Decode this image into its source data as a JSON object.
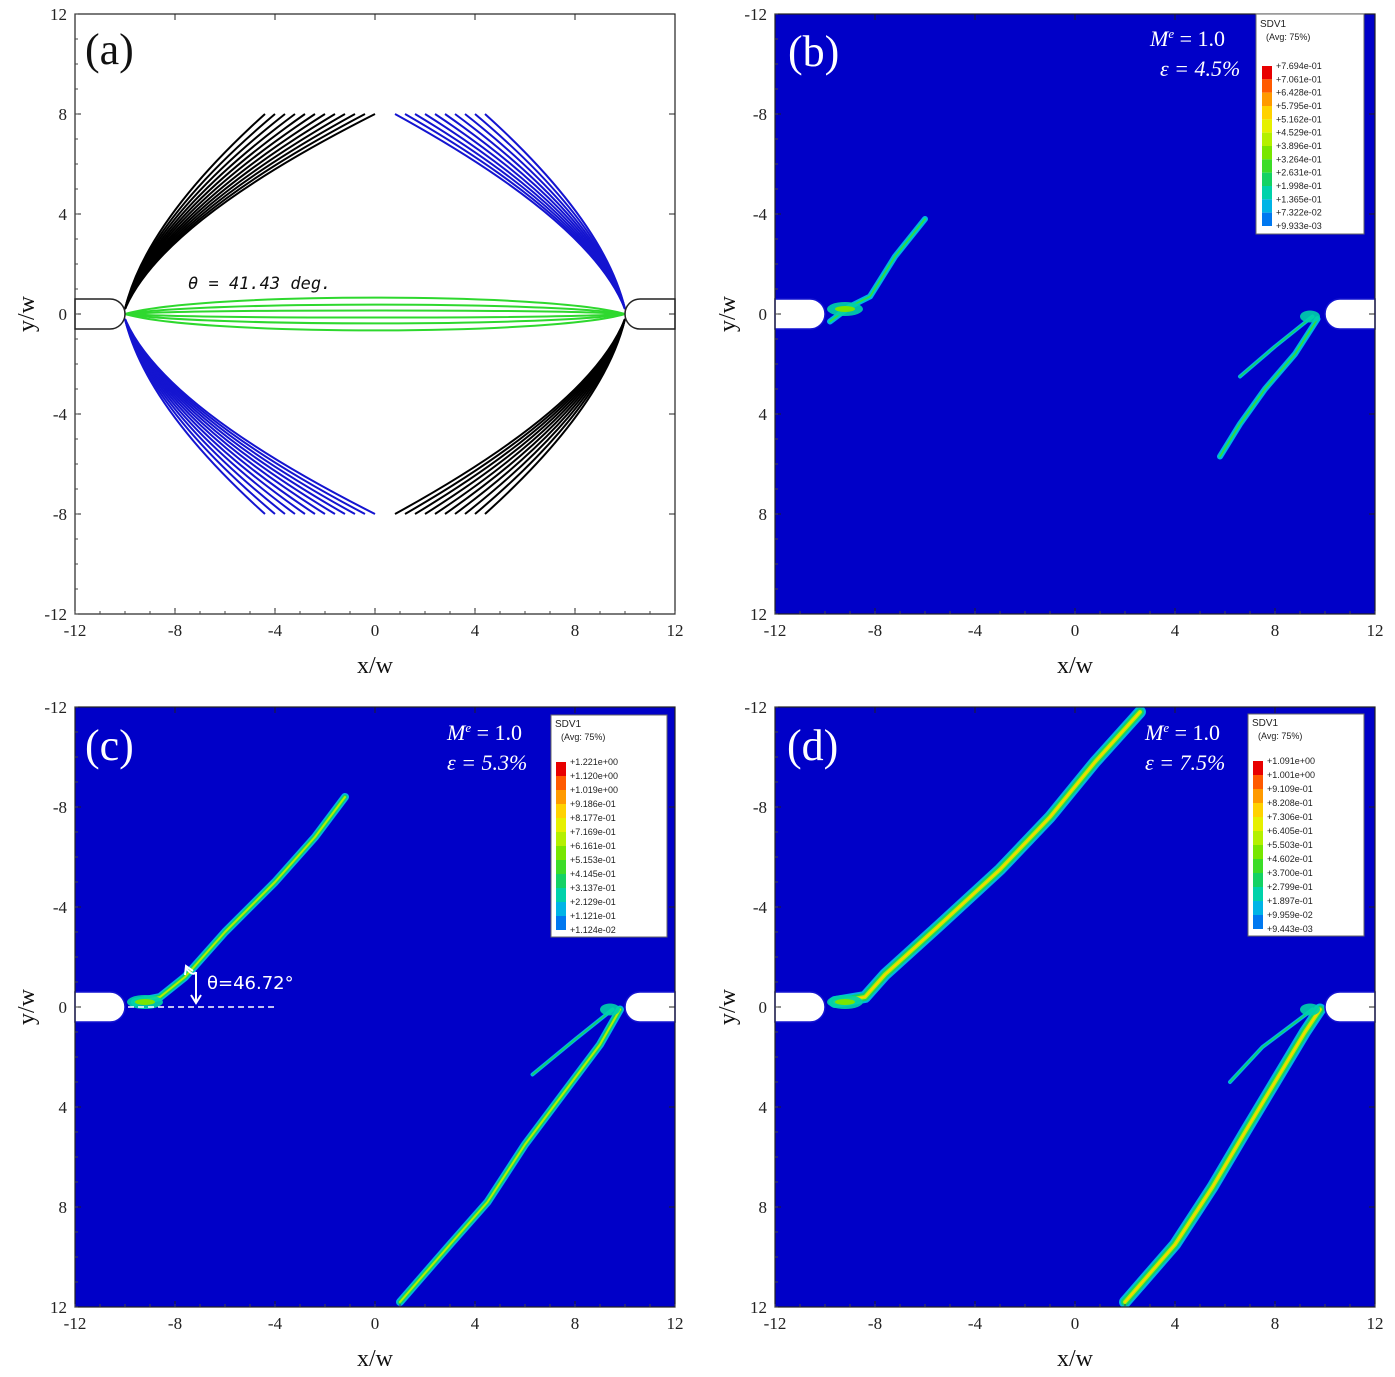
{
  "chart_data": [
    {
      "id": "a",
      "type": "line",
      "panel_label": "(a)",
      "xlabel": "x/w",
      "ylabel": "y/w",
      "xlim": [
        -12,
        12
      ],
      "ylim": [
        -12,
        12
      ],
      "x_ticks": [
        "-12",
        "-8",
        "-4",
        "0",
        "4",
        "8",
        "12"
      ],
      "y_ticks": [
        "12",
        "8",
        "4",
        "0",
        "-4",
        "-8",
        "-12"
      ],
      "y_axis": "up",
      "annotation": "θ = 41.43  deg.",
      "series_colors": {
        "black": "#000000",
        "blue": "#1414d0",
        "green": "#2ed82e"
      },
      "upper_left_black_end_x": [
        -4.4,
        -4.0,
        -3.6,
        -3.2,
        -2.8,
        -2.4,
        -2.0,
        -1.6,
        -1.2,
        -0.8,
        -0.4,
        0.0
      ],
      "upper_right_blue_end_x": [
        0.8,
        1.2,
        1.6,
        2.0,
        2.4,
        2.8,
        3.2,
        3.6,
        4.0,
        4.4
      ],
      "lower_left_blue_end_x": [
        -4.4,
        -4.0,
        -3.6,
        -3.2,
        -2.8,
        -2.4,
        -2.0,
        -1.6,
        -1.2,
        -0.8,
        -0.4,
        0.0
      ],
      "lower_right_black_end_x": [
        0.8,
        1.2,
        1.6,
        2.0,
        2.4,
        2.8,
        3.2,
        3.6,
        4.0,
        4.4
      ],
      "end_y": 8,
      "notch_tip_x": 10,
      "green_band_y": [
        0.7,
        0.4,
        0.15,
        -0.15,
        -0.4,
        -0.7
      ]
    },
    {
      "id": "b",
      "type": "heatmap",
      "panel_label": "(b)",
      "xlabel": "x/w",
      "ylabel": "y/w",
      "xlim": [
        -12,
        12
      ],
      "ylim": [
        -12,
        12
      ],
      "x_ticks": [
        "-12",
        "-8",
        "-4",
        "0",
        "4",
        "8",
        "12"
      ],
      "y_ticks": [
        "-12",
        "-8",
        "-4",
        "0",
        "4",
        "8",
        "12"
      ],
      "y_axis": "down",
      "M_label": "M",
      "M_sup": "e",
      "M_value": " = 1.0",
      "strain": "ε = 4.5%",
      "legend_title": "SDV1",
      "legend_sub": "(Avg: 75%)",
      "legend_values": [
        "+7.694e-01",
        "+7.061e-01",
        "+6.428e-01",
        "+5.795e-01",
        "+5.162e-01",
        "+4.529e-01",
        "+3.896e-01",
        "+3.264e-01",
        "+2.631e-01",
        "+1.998e-01",
        "+1.365e-01",
        "+7.322e-02",
        "+9.933e-03"
      ],
      "bands": [
        {
          "points": [
            [
              -9.8,
              0.3
            ],
            [
              -9.0,
              -0.3
            ],
            [
              -8.2,
              -0.7
            ],
            [
              -7.2,
              -2.3
            ],
            [
              -6.0,
              -3.8
            ]
          ]
        },
        {
          "points": [
            [
              9.7,
              0.2
            ],
            [
              8.8,
              1.6
            ],
            [
              7.6,
              3.0
            ],
            [
              6.6,
              4.4
            ],
            [
              5.8,
              5.7
            ]
          ]
        },
        {
          "points": [
            [
              9.5,
              0.1
            ],
            [
              8.0,
              1.3
            ],
            [
              6.6,
              2.5
            ]
          ]
        }
      ]
    },
    {
      "id": "c",
      "type": "heatmap",
      "panel_label": "(c)",
      "xlabel": "x/w",
      "ylabel": "y/w",
      "xlim": [
        -12,
        12
      ],
      "ylim": [
        -12,
        12
      ],
      "x_ticks": [
        "-12",
        "-8",
        "-4",
        "0",
        "4",
        "8",
        "12"
      ],
      "y_ticks": [
        "-12",
        "-8",
        "-4",
        "0",
        "4",
        "8",
        "12"
      ],
      "y_axis": "down",
      "M_label": "M",
      "M_sup": "e",
      "M_value": " = 1.0",
      "strain": "ε = 5.3%",
      "angle_label": "θ=46.72°",
      "legend_title": "SDV1",
      "legend_sub": "(Avg: 75%)",
      "legend_values": [
        "+1.221e+00",
        "+1.120e+00",
        "+1.019e+00",
        "+9.186e-01",
        "+8.177e-01",
        "+7.169e-01",
        "+6.161e-01",
        "+5.153e-01",
        "+4.145e-01",
        "+3.137e-01",
        "+2.129e-01",
        "+1.121e-01",
        "+1.124e-02"
      ],
      "bands": [
        {
          "points": [
            [
              -9.6,
              -0.2
            ],
            [
              -8.6,
              -0.4
            ],
            [
              -7.6,
              -1.2
            ],
            [
              -6.0,
              -3.0
            ],
            [
              -4.0,
              -5.0
            ],
            [
              -2.4,
              -6.8
            ],
            [
              -1.2,
              -8.4
            ]
          ]
        },
        {
          "points": [
            [
              9.8,
              0.1
            ],
            [
              9.0,
              1.5
            ],
            [
              7.5,
              3.5
            ],
            [
              6.0,
              5.5
            ],
            [
              4.5,
              7.8
            ],
            [
              3.0,
              9.5
            ],
            [
              1.0,
              11.8
            ]
          ]
        },
        {
          "points": [
            [
              9.5,
              0.1
            ],
            [
              8.0,
              1.3
            ],
            [
              6.3,
              2.7
            ]
          ]
        }
      ]
    },
    {
      "id": "d",
      "type": "heatmap",
      "panel_label": "(d)",
      "xlabel": "x/w",
      "ylabel": "y/w",
      "xlim": [
        -12,
        12
      ],
      "ylim": [
        -12,
        12
      ],
      "x_ticks": [
        "-12",
        "-8",
        "-4",
        "0",
        "4",
        "8",
        "12"
      ],
      "y_ticks": [
        "-12",
        "-8",
        "-4",
        "0",
        "4",
        "8",
        "12"
      ],
      "y_axis": "down",
      "M_label": "M",
      "M_sup": "e",
      "M_value": " = 1.0",
      "strain": "ε = 7.5%",
      "legend_title": "SDV1",
      "legend_sub": "(Avg: 75%)",
      "legend_values": [
        "+1.091e+00",
        "+1.001e+00",
        "+9.109e-01",
        "+8.208e-01",
        "+7.306e-01",
        "+6.405e-01",
        "+5.503e-01",
        "+4.602e-01",
        "+3.700e-01",
        "+2.799e-01",
        "+1.897e-01",
        "+9.959e-02",
        "+9.443e-03"
      ],
      "bands": [
        {
          "points": [
            [
              -9.6,
              -0.2
            ],
            [
              -8.4,
              -0.4
            ],
            [
              -7.6,
              -1.3
            ],
            [
              -5.5,
              -3.2
            ],
            [
              -3.0,
              -5.5
            ],
            [
              -1.0,
              -7.6
            ],
            [
              0.8,
              -9.8
            ],
            [
              2.6,
              -11.8
            ]
          ]
        },
        {
          "points": [
            [
              9.8,
              0.1
            ],
            [
              9.2,
              1.0
            ],
            [
              8.0,
              3.0
            ],
            [
              6.8,
              5.0
            ],
            [
              5.5,
              7.2
            ],
            [
              4.0,
              9.5
            ],
            [
              2.0,
              11.8
            ]
          ]
        },
        {
          "points": [
            [
              9.5,
              0.1
            ],
            [
              7.5,
              1.6
            ],
            [
              6.2,
              3.0
            ]
          ]
        }
      ]
    }
  ],
  "colors": {
    "field": "#0000c8",
    "contour": [
      "#e80000",
      "#ff5a00",
      "#ff9a00",
      "#ffd200",
      "#e6f000",
      "#b4f000",
      "#78e600",
      "#3cdc28",
      "#14d264",
      "#00d2aa",
      "#00b4e6",
      "#0078f0",
      "#0032dc"
    ]
  }
}
